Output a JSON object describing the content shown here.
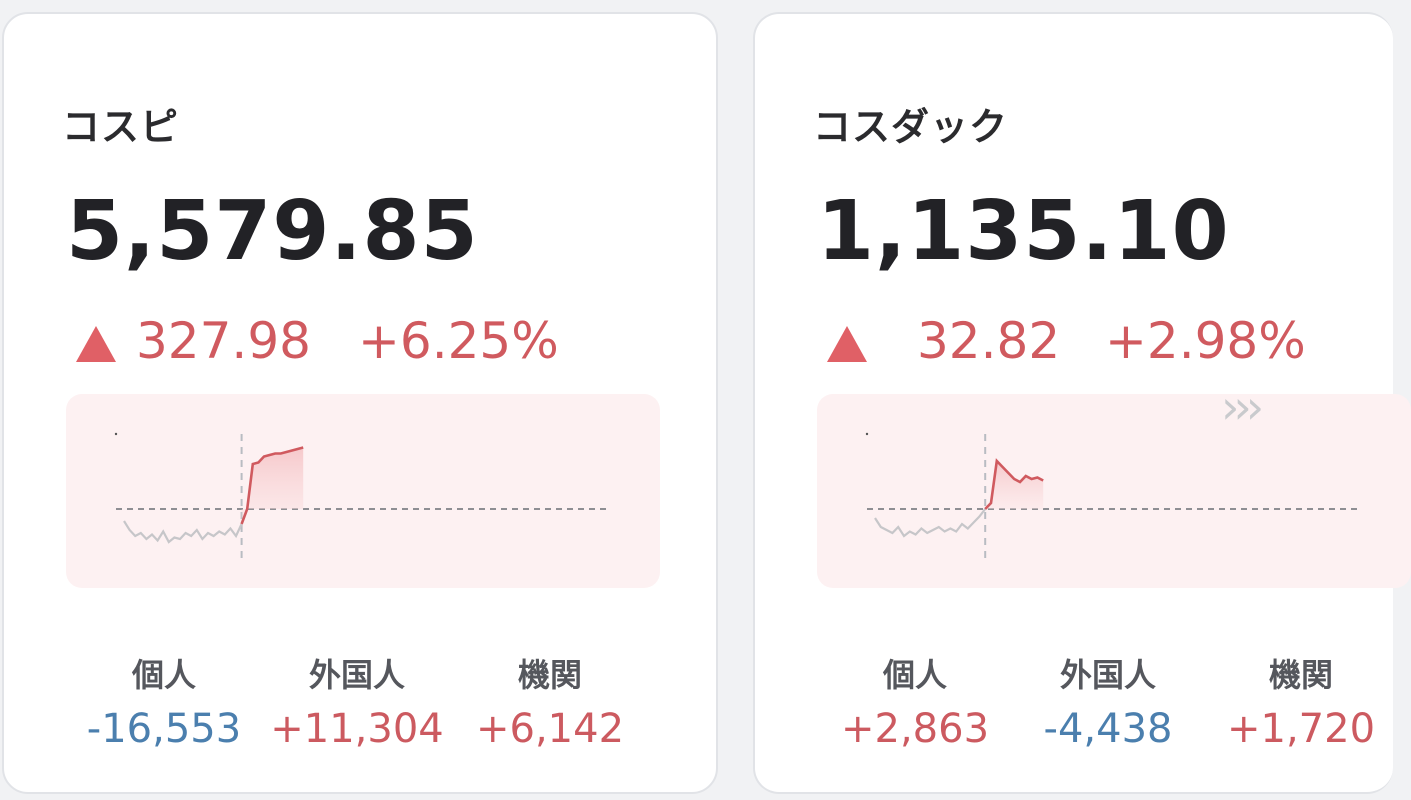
{
  "colors": {
    "up": "#cc5a60",
    "down": "#4b7fae",
    "up_triangle": "#e06066",
    "chart_bg": "#fdf1f2"
  },
  "cards": [
    {
      "name": "コスピ",
      "value": "5,579.85",
      "change_abs": "327.98",
      "change_pct": "+6.25%",
      "direction": "up",
      "chart_data": {
        "type": "line",
        "series": [
          {
            "values": [
              0.92,
              0.86,
              0.82,
              0.84,
              0.8,
              0.83,
              0.79,
              0.85,
              0.78,
              0.81,
              0.8,
              0.84,
              0.82,
              0.86,
              0.8,
              0.84,
              0.82,
              0.85,
              0.83,
              0.87,
              0.82,
              0.9,
              1.0,
              1.3,
              1.31,
              1.35,
              1.36,
              1.37,
              1.37,
              1.38,
              1.39,
              1.4,
              1.41
            ]
          }
        ],
        "reference_line": 1.0,
        "session_break_index": 21
      },
      "investors": [
        {
          "label": "個人",
          "value": "-16,553",
          "sign": "neg"
        },
        {
          "label": "外国人",
          "value": "+11,304",
          "sign": "pos"
        },
        {
          "label": "機関",
          "value": "+6,142",
          "sign": "pos"
        }
      ]
    },
    {
      "name": "コスダック",
      "value": "1,135.10",
      "change_abs": "32.82",
      "change_pct": "+2.98%",
      "direction": "up",
      "chart_data": {
        "type": "line",
        "series": [
          {
            "values": [
              0.94,
              0.88,
              0.86,
              0.84,
              0.88,
              0.82,
              0.85,
              0.83,
              0.87,
              0.84,
              0.86,
              0.88,
              0.85,
              0.87,
              0.85,
              0.9,
              0.87,
              0.91,
              0.95,
              1.0,
              1.04,
              1.32,
              1.28,
              1.24,
              1.2,
              1.18,
              1.22,
              1.2,
              1.21,
              1.19
            ]
          }
        ],
        "reference_line": 1.0,
        "session_break_index": 19
      },
      "investors": [
        {
          "label": "個人",
          "value": "+2,863",
          "sign": "pos"
        },
        {
          "label": "外国人",
          "value": "-4,438",
          "sign": "neg"
        },
        {
          "label": "機関",
          "value": "+1,720",
          "sign": "pos"
        }
      ],
      "more_icon": "chevrons-right-icon"
    }
  ]
}
